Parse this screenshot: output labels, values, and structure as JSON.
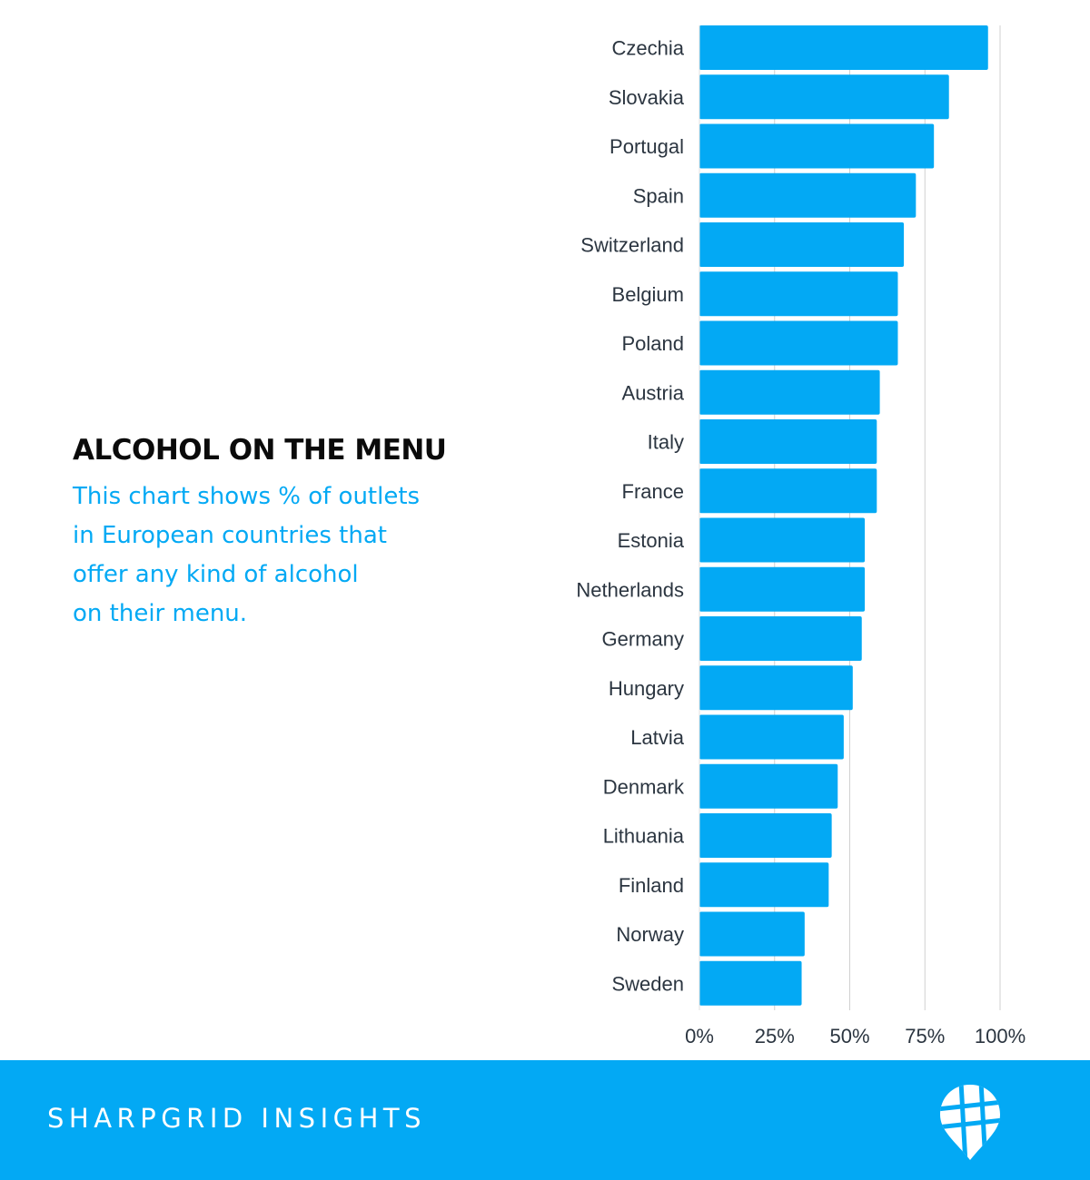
{
  "heading": {
    "title": "ALCOHOL ON THE MENU",
    "subtitle_lines": [
      "This chart shows % of outlets",
      "in European countries that",
      "offer any kind of alcohol",
      "on their menu."
    ]
  },
  "footer": {
    "brand": "SHARPGRID INSIGHTS",
    "logo_icon": "map-pin-logo-icon"
  },
  "colors": {
    "bar": "#03a9f4",
    "accent": "#03a9f4",
    "text": "#2b3540",
    "grid": "#d0d0d0",
    "footer_bg": "#03a9f4"
  },
  "chart_data": {
    "type": "bar",
    "orientation": "horizontal",
    "categories": [
      "Czechia",
      "Slovakia",
      "Portugal",
      "Spain",
      "Switzerland",
      "Belgium",
      "Poland",
      "Austria",
      "Italy",
      "France",
      "Estonia",
      "Netherlands",
      "Germany",
      "Hungary",
      "Latvia",
      "Denmark",
      "Lithuania",
      "Finland",
      "Norway",
      "Sweden"
    ],
    "values": [
      96,
      83,
      78,
      72,
      68,
      66,
      66,
      60,
      59,
      59,
      55,
      55,
      54,
      51,
      48,
      46,
      44,
      43,
      35,
      34
    ],
    "unit": "%",
    "xlim": [
      0,
      100
    ],
    "xticks": [
      0,
      25,
      50,
      75,
      100
    ],
    "xtick_labels": [
      "0%",
      "25%",
      "50%",
      "75%",
      "100%"
    ],
    "grid": "vertical",
    "legend": "none"
  }
}
